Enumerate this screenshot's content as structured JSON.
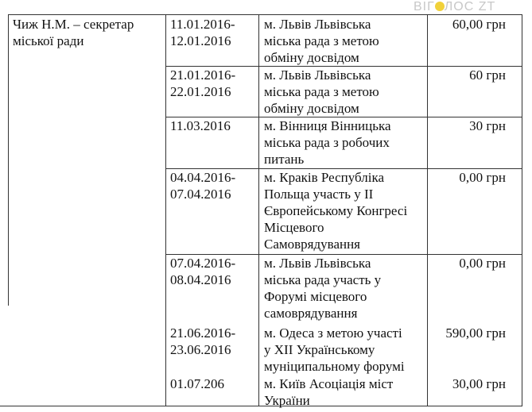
{
  "watermark": "ВІГОЛОС ZT",
  "person": "Чиж Н.М. – секретар міської ради",
  "person_lines": [
    "Чиж Н.М. – секретар",
    "міської ради"
  ],
  "rows": [
    {
      "dates": [
        "11.01.2016-",
        "12.01.2016"
      ],
      "purpose": [
        "м. Львів Львівська",
        "міська рада з метою",
        "обміну досвідом"
      ],
      "amount": "60,00 грн"
    },
    {
      "dates": [
        "21.01.2016-",
        "22.01.2016"
      ],
      "purpose": [
        "м. Львів Львівська",
        "міська рада з метою",
        "обміну досвідом"
      ],
      "amount": "60 грн"
    },
    {
      "dates": [
        "11.03.2016"
      ],
      "purpose": [
        "м. Вінниця Вінницька",
        "міська рада з робочих",
        "питань"
      ],
      "amount": "30 грн"
    },
    {
      "dates": [
        "04.04.2016-",
        "07.04.2016"
      ],
      "purpose": [
        "м. Краків Республіка",
        "Польща участь у ІІ",
        "Європейському Конгресі",
        "Місцевого",
        "Самоврядування"
      ],
      "amount": "0,00 грн"
    },
    {
      "dates": [
        "07.04.2016-",
        "08.04.2016"
      ],
      "purpose": [
        "м. Львів Львівська",
        "міська рада участь у",
        "Форумі місцевого",
        "самоврядування"
      ],
      "amount": "0,00 грн"
    },
    {
      "dates": [
        "21.06.2016-",
        "23.06.2016"
      ],
      "purpose": [
        "м. Одеса з метою участі",
        "у ХІІ Українському",
        "муніципальному форумі"
      ],
      "amount": "590,00 грн"
    },
    {
      "dates": [
        "01.07.206"
      ],
      "purpose": [
        "м. Київ Асоціація міст",
        "України"
      ],
      "amount": "30,00 грн"
    }
  ]
}
